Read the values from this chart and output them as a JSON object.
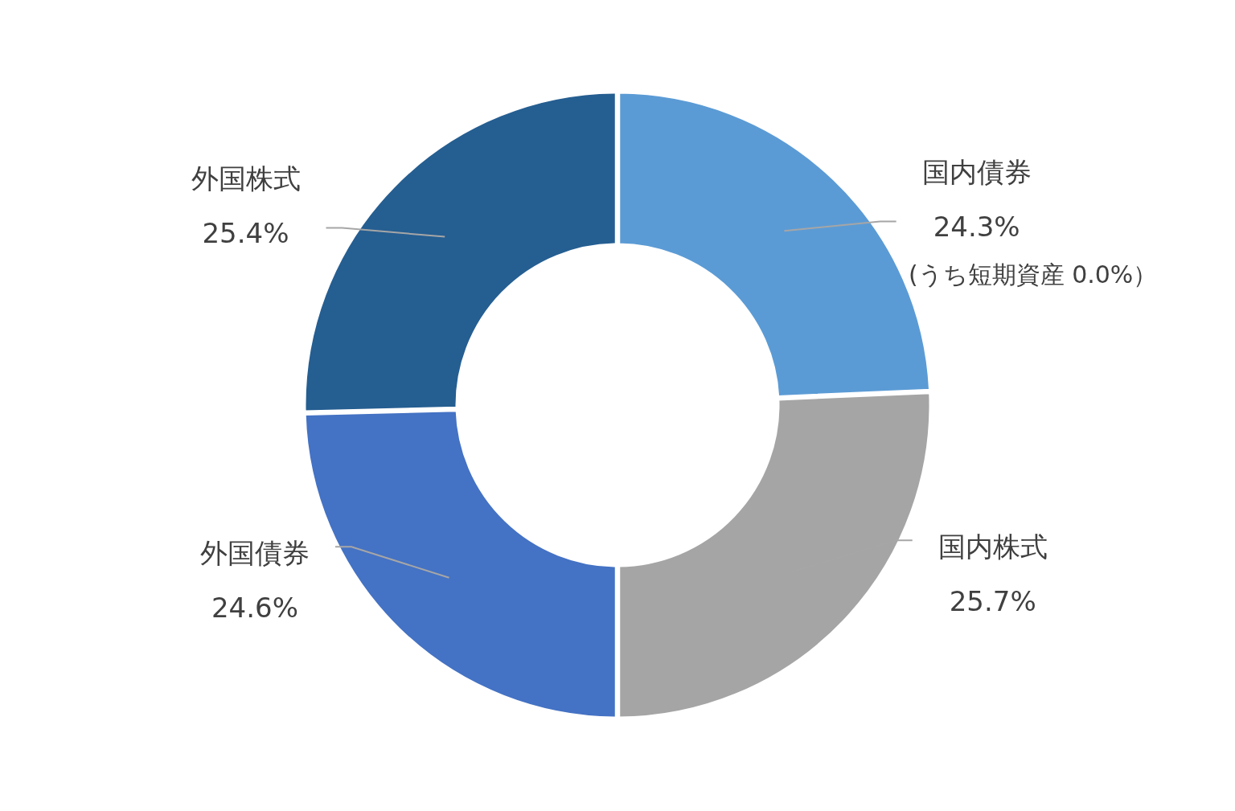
{
  "chart_data": {
    "type": "donut",
    "categories": [
      "国内債券",
      "国内株式",
      "外国債券",
      "外国株式"
    ],
    "values": [
      24.3,
      25.7,
      24.6,
      25.4
    ],
    "colors": [
      "#5b9bd5",
      "#a5a5a5",
      "#4472c4",
      "#255e91"
    ],
    "value_labels": [
      "24.3%",
      "25.7%",
      "24.6%",
      "25.4%"
    ],
    "annotations": [
      "(うち短期資産 0.0%）"
    ]
  }
}
